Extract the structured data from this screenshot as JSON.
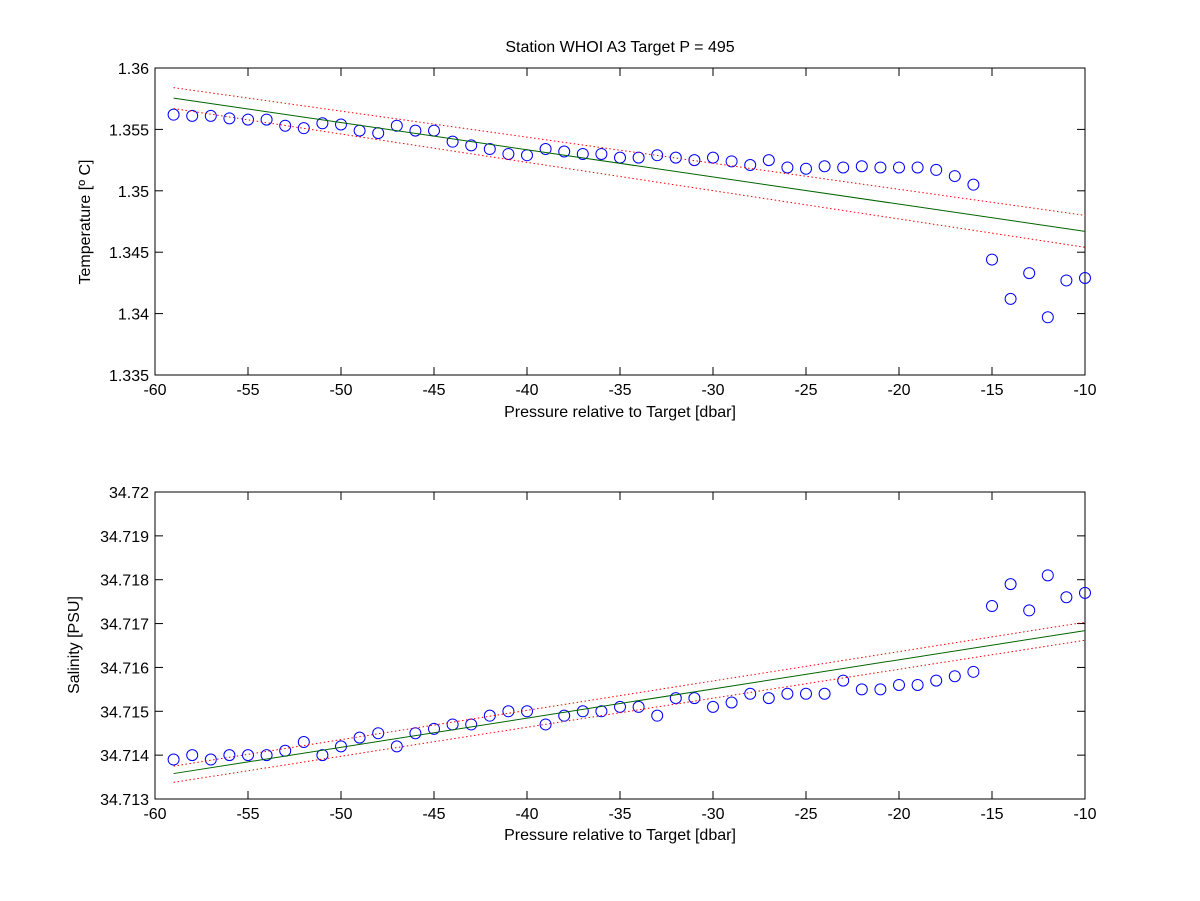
{
  "chart_data": [
    {
      "type": "scatter",
      "title": "Station  WHOI A3 Target P = 495",
      "xlabel": "Pressure relative to Target [dbar]",
      "ylabel": "Temperature [º C]",
      "xlim": [
        -60,
        -10
      ],
      "ylim": [
        1.335,
        1.36
      ],
      "xticks": [
        -60,
        -55,
        -50,
        -45,
        -40,
        -35,
        -30,
        -25,
        -20,
        -15,
        -10
      ],
      "yticks": [
        1.335,
        1.34,
        1.345,
        1.35,
        1.355,
        1.36
      ],
      "ytick_decimals": 3,
      "grid": false,
      "colors": {
        "points": "#0000ff",
        "fit": "#006400",
        "bounds": "#ff0000"
      },
      "series": [
        {
          "kind": "points",
          "x": [
            -59,
            -58,
            -57,
            -56,
            -55,
            -54,
            -53,
            -52,
            -51,
            -50,
            -49,
            -48,
            -47,
            -46,
            -45,
            -44,
            -43,
            -42,
            -41,
            -40,
            -39,
            -38,
            -37,
            -36,
            -35,
            -34,
            -33,
            -32,
            -31,
            -30,
            -29,
            -28,
            -27,
            -26,
            -25,
            -24,
            -23,
            -22,
            -21,
            -20,
            -19,
            -18,
            -17,
            -16,
            -15,
            -14,
            -13,
            -12,
            -11,
            -10
          ],
          "values": [
            1.3562,
            1.3561,
            1.3561,
            1.3559,
            1.3558,
            1.3558,
            1.3553,
            1.3551,
            1.3555,
            1.3554,
            1.3549,
            1.3547,
            1.3553,
            1.3549,
            1.3549,
            1.354,
            1.3537,
            1.3534,
            1.353,
            1.3529,
            1.3534,
            1.3532,
            1.353,
            1.353,
            1.3527,
            1.3527,
            1.3529,
            1.3527,
            1.3525,
            1.3527,
            1.3524,
            1.3521,
            1.3525,
            1.3519,
            1.3518,
            1.352,
            1.3519,
            1.352,
            1.3519,
            1.3519,
            1.3519,
            1.3517,
            1.3512,
            1.3505,
            1.3444,
            1.3412,
            1.3433,
            1.3397,
            1.3427,
            1.3429
          ]
        },
        {
          "kind": "fit",
          "x": [
            -59,
            -10
          ],
          "values": [
            1.35755,
            1.3467
          ]
        },
        {
          "kind": "bound",
          "x": [
            -59,
            -10
          ],
          "values": [
            1.3584,
            1.348
          ]
        },
        {
          "kind": "bound",
          "x": [
            -59,
            -10
          ],
          "values": [
            1.3567,
            1.3454
          ]
        }
      ]
    },
    {
      "type": "scatter",
      "title": "",
      "xlabel": "Pressure relative to Target [dbar]",
      "ylabel": "Salinity [PSU]",
      "xlim": [
        -60,
        -10
      ],
      "ylim": [
        34.713,
        34.72
      ],
      "xticks": [
        -60,
        -55,
        -50,
        -45,
        -40,
        -35,
        -30,
        -25,
        -20,
        -15,
        -10
      ],
      "yticks": [
        34.713,
        34.714,
        34.715,
        34.716,
        34.717,
        34.718,
        34.719,
        34.72
      ],
      "ytick_decimals": 3,
      "grid": false,
      "colors": {
        "points": "#0000ff",
        "fit": "#006400",
        "bounds": "#ff0000"
      },
      "series": [
        {
          "kind": "points",
          "x": [
            -59,
            -58,
            -57,
            -56,
            -55,
            -54,
            -53,
            -52,
            -51,
            -50,
            -49,
            -48,
            -47,
            -46,
            -45,
            -44,
            -43,
            -42,
            -41,
            -40,
            -39,
            -38,
            -37,
            -36,
            -35,
            -34,
            -33,
            -32,
            -31,
            -30,
            -29,
            -28,
            -27,
            -26,
            -25,
            -24,
            -23,
            -22,
            -21,
            -20,
            -19,
            -18,
            -17,
            -16,
            -15,
            -14,
            -13,
            -12,
            -11,
            -10
          ],
          "values": [
            34.7139,
            34.714,
            34.7139,
            34.714,
            34.714,
            34.714,
            34.7141,
            34.7143,
            34.714,
            34.7142,
            34.7144,
            34.7145,
            34.7142,
            34.7145,
            34.7146,
            34.7147,
            34.7147,
            34.7149,
            34.715,
            34.715,
            34.7147,
            34.7149,
            34.715,
            34.715,
            34.7151,
            34.7151,
            34.7149,
            34.7153,
            34.7153,
            34.7151,
            34.7152,
            34.7154,
            34.7153,
            34.7154,
            34.7154,
            34.7154,
            34.7157,
            34.7155,
            34.7155,
            34.7156,
            34.7156,
            34.7157,
            34.7158,
            34.7159,
            34.7174,
            34.7179,
            34.7173,
            34.7181,
            34.7176,
            34.7177
          ]
        },
        {
          "kind": "fit",
          "x": [
            -59,
            -10
          ],
          "values": [
            34.71358,
            34.71684
          ]
        },
        {
          "kind": "bound",
          "x": [
            -59,
            -10
          ],
          "values": [
            34.71375,
            34.71703
          ]
        },
        {
          "kind": "bound",
          "x": [
            -59,
            -10
          ],
          "values": [
            34.71338,
            34.71662
          ]
        }
      ]
    }
  ]
}
